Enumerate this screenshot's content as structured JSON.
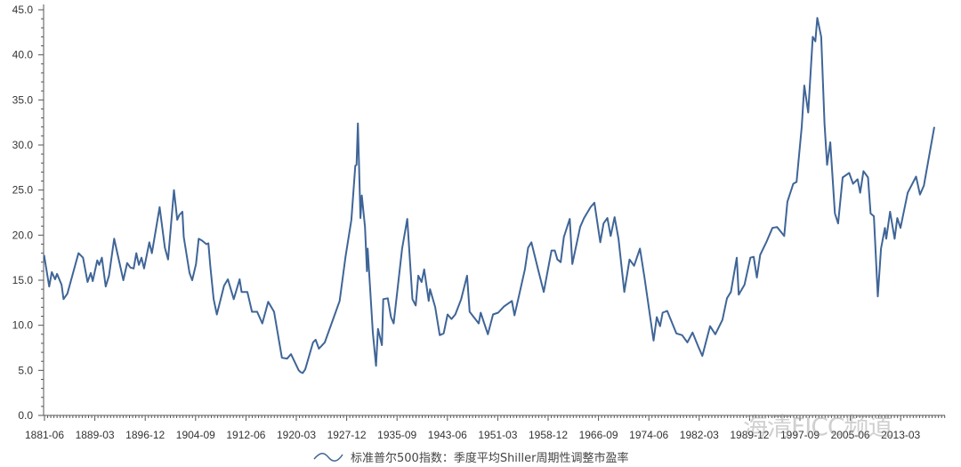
{
  "chart_data": {
    "type": "line",
    "title": "",
    "xlabel": "",
    "ylabel": "",
    "ylim": [
      0,
      45
    ],
    "xlim": [
      1881.375,
      2018.5
    ],
    "grid": false,
    "legend_position": "bottom-center",
    "y_ticks": [
      "0.0",
      "5.0",
      "10.0",
      "15.0",
      "20.0",
      "25.0",
      "30.0",
      "35.0",
      "40.0",
      "45.0"
    ],
    "x_tick_labels": [
      "1881-06",
      "1889-03",
      "1896-12",
      "1904-09",
      "1912-06",
      "1920-03",
      "1927-12",
      "1935-09",
      "1943-06",
      "1951-03",
      "1958-12",
      "1966-09",
      "1974-06",
      "1982-03",
      "1989-12",
      "1997-09",
      "2005-06",
      "2013-03"
    ],
    "series": [
      {
        "name": "标准普尔500指数：季度平均Shiller周期性调整市盈率",
        "color": "#3f6597",
        "x": [
          1881.3,
          1882.1,
          1882.5,
          1883.0,
          1883.3,
          1884.0,
          1884.3,
          1884.9,
          1886.6,
          1887.3,
          1888.0,
          1888.5,
          1888.8,
          1889.5,
          1889.8,
          1890.2,
          1890.8,
          1891.3,
          1892.1,
          1893.5,
          1894.1,
          1894.6,
          1895.1,
          1895.5,
          1895.9,
          1896.3,
          1896.7,
          1897.5,
          1897.9,
          1899.1,
          1899.9,
          1900.4,
          1901.3,
          1901.8,
          1902.1,
          1902.6,
          1902.8,
          1903.7,
          1904.1,
          1904.7,
          1905.1,
          1905.6,
          1906.3,
          1906.6,
          1906.9,
          1907.4,
          1907.9,
          1909.0,
          1909.6,
          1910.5,
          1911.4,
          1911.7,
          1912.6,
          1913.3,
          1914.1,
          1914.9,
          1915.8,
          1916.7,
          1917.9,
          1918.7,
          1919.3,
          1920.5,
          1920.8,
          1921.1,
          1921.5,
          1922.7,
          1923.1,
          1923.6,
          1924.5,
          1925.9,
          1926.8,
          1927.7,
          1928.6,
          1929.2,
          1929.4,
          1929.6,
          1930.0,
          1930.2,
          1930.7,
          1931.0,
          1931.1,
          1931.9,
          1932.4,
          1932.7,
          1933.3,
          1933.5,
          1934.2,
          1934.7,
          1935.1,
          1936.4,
          1937.2,
          1938.0,
          1938.5,
          1938.9,
          1939.4,
          1939.8,
          1940.5,
          1940.7,
          1941.5,
          1942.2,
          1942.8,
          1943.4,
          1944.0,
          1944.6,
          1945.5,
          1946.4,
          1946.8,
          1948.2,
          1948.5,
          1949.6,
          1950.4,
          1951.2,
          1952.1,
          1953.3,
          1953.7,
          1954.3,
          1955.3,
          1955.8,
          1956.3,
          1957.4,
          1958.2,
          1959.4,
          1959.9,
          1960.3,
          1960.8,
          1961.3,
          1962.2,
          1962.6,
          1963.8,
          1964.4,
          1965.4,
          1966.0,
          1966.9,
          1967.4,
          1968.0,
          1968.5,
          1969.1,
          1969.7,
          1970.6,
          1971.4,
          1972.1,
          1973.0,
          1973.7,
          1975.1,
          1975.6,
          1976.1,
          1976.5,
          1977.2,
          1978.6,
          1979.5,
          1980.3,
          1981.1,
          1982.0,
          1982.6,
          1983.8,
          1984.6,
          1985.7,
          1986.4,
          1987.0,
          1987.9,
          1988.2,
          1989.1,
          1990.0,
          1990.5,
          1991.0,
          1991.5,
          1992.5,
          1993.4,
          1994.1,
          1995.2,
          1995.7,
          1996.6,
          1997.1,
          1997.9,
          1998.3,
          1998.9,
          1999.6,
          2000.0,
          2000.3,
          2000.9,
          2001.4,
          2001.8,
          2002.3,
          2003.0,
          2003.5,
          2004.2,
          2005.2,
          2005.8,
          2006.5,
          2006.9,
          2007.4,
          2008.1,
          2008.5,
          2009.0,
          2009.6,
          2010.1,
          2010.7,
          2010.9,
          2011.5,
          2012.2,
          2012.6,
          2013.1,
          2014.2,
          2015.5,
          2016.1,
          2016.7,
          2018.3
        ],
        "y": [
          17.8,
          14.3,
          15.9,
          15.1,
          15.7,
          14.5,
          12.9,
          13.5,
          18.0,
          17.5,
          14.8,
          15.8,
          14.9,
          17.2,
          16.7,
          17.5,
          14.3,
          15.5,
          19.6,
          15.0,
          16.9,
          16.4,
          16.3,
          18.0,
          16.7,
          17.5,
          16.3,
          19.2,
          18.0,
          23.1,
          18.6,
          17.3,
          25.0,
          21.7,
          22.2,
          22.6,
          19.8,
          15.8,
          15.0,
          16.8,
          19.6,
          19.4,
          19.0,
          19.1,
          16.5,
          12.9,
          11.2,
          14.4,
          15.1,
          12.9,
          15.1,
          13.7,
          13.7,
          11.5,
          11.5,
          10.2,
          12.6,
          11.5,
          6.4,
          6.3,
          6.8,
          5.0,
          4.8,
          4.7,
          5.1,
          8.1,
          8.4,
          7.4,
          8.1,
          10.9,
          12.7,
          17.6,
          21.7,
          27.7,
          27.8,
          32.4,
          21.9,
          24.4,
          20.9,
          16.0,
          18.5,
          9.2,
          5.5,
          9.6,
          7.8,
          12.9,
          13.0,
          10.9,
          10.2,
          18.5,
          21.8,
          12.9,
          12.2,
          15.5,
          14.8,
          16.2,
          12.7,
          14.0,
          12.0,
          8.9,
          9.1,
          11.2,
          10.7,
          11.2,
          12.9,
          15.5,
          11.5,
          10.2,
          11.4,
          9.0,
          11.2,
          11.4,
          12.1,
          12.7,
          11.1,
          13.0,
          16.2,
          18.6,
          19.2,
          16.0,
          13.7,
          18.3,
          18.3,
          17.3,
          17.0,
          19.8,
          21.8,
          16.8,
          20.9,
          21.9,
          23.1,
          23.6,
          19.2,
          21.3,
          21.9,
          19.9,
          22.0,
          19.6,
          13.7,
          17.3,
          16.6,
          18.5,
          15.3,
          8.3,
          10.9,
          9.9,
          11.4,
          11.6,
          9.1,
          8.9,
          8.1,
          9.2,
          7.6,
          6.6,
          9.9,
          9.0,
          10.6,
          13.0,
          13.7,
          17.5,
          13.4,
          14.5,
          17.5,
          17.6,
          15.3,
          17.8,
          19.3,
          20.8,
          20.9,
          19.9,
          23.7,
          25.7,
          25.9,
          32.0,
          36.6,
          33.6,
          42.0,
          41.5,
          44.1,
          42.0,
          32.4,
          27.8,
          30.3,
          22.4,
          21.3,
          26.4,
          26.9,
          25.7,
          26.2,
          24.7,
          27.1,
          26.4,
          22.4,
          22.1,
          13.2,
          18.5,
          20.8,
          19.6,
          22.6,
          19.6,
          21.9,
          20.8,
          24.7,
          26.5,
          24.5,
          25.5,
          32.0
        ]
      }
    ]
  },
  "watermark": "海清FICC频道"
}
